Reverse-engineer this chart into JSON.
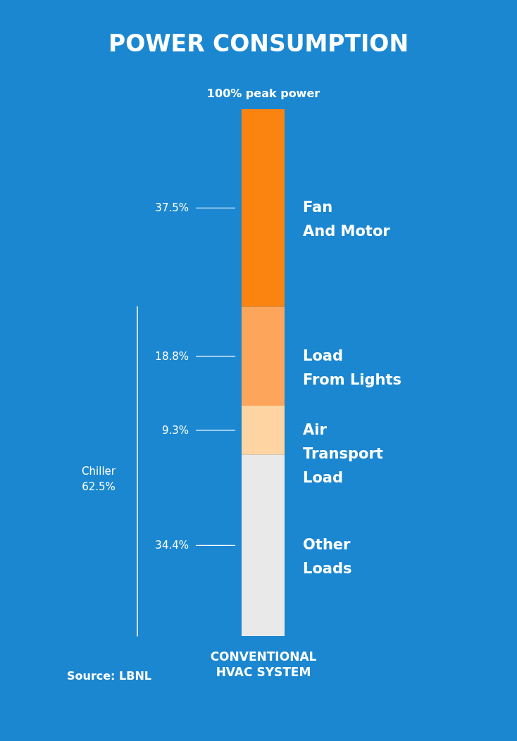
{
  "chart_data": {
    "type": "bar",
    "title": "POWER CONSUMPTION",
    "categories": [
      "CONVENTIONAL HVAC SYSTEM"
    ],
    "stacked": true,
    "legend": false,
    "series": [
      {
        "name": "Other Loads",
        "color": "#e9e9e9",
        "values": [
          34.4
        ],
        "value_labels": [
          "34.4%"
        ]
      },
      {
        "name": "Air Transport Load",
        "color": "#fdd4a2",
        "values": [
          9.3
        ],
        "value_labels": [
          "9.3%"
        ]
      },
      {
        "name": "Load From Lights",
        "color": "#fda65b",
        "values": [
          18.8
        ],
        "value_labels": [
          "18.8%"
        ]
      },
      {
        "name": "Fan And Motor",
        "color": "#fb830f",
        "values": [
          37.5
        ],
        "value_labels": [
          "37.5%"
        ]
      }
    ],
    "annotations": [
      "100% peak power",
      "Chiller 62.5%",
      "Source: LBNL"
    ]
  }
}
